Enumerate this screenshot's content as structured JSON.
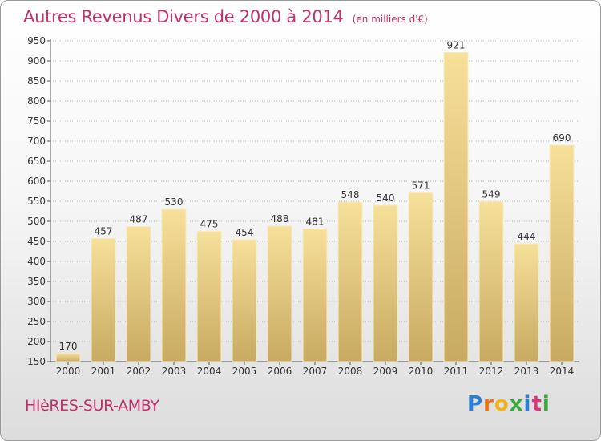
{
  "title": "Autres Revenus Divers de 2000 à 2014",
  "subtitle": "(en milliers d'€)",
  "town": "HIèRES-SUR-AMBY",
  "logo": {
    "text": "Proxiti",
    "letters": [
      "P",
      "r",
      "o",
      "x",
      "i",
      "t",
      "i"
    ]
  },
  "colors": {
    "title": "#c0306a",
    "bar_light": "#f6e09a",
    "bar_dark": "#c8aa62",
    "grid": "#b8b8b8"
  },
  "chart_data": {
    "type": "bar",
    "title": "Autres Revenus Divers de 2000 à 2014",
    "subtitle": "(en milliers d'€)",
    "categories": [
      "2000",
      "2001",
      "2002",
      "2003",
      "2004",
      "2005",
      "2006",
      "2007",
      "2008",
      "2009",
      "2010",
      "2011",
      "2012",
      "2013",
      "2014"
    ],
    "values": [
      170,
      457,
      487,
      530,
      475,
      454,
      488,
      481,
      548,
      540,
      571,
      921,
      549,
      444,
      690
    ],
    "ylim": [
      150,
      950
    ],
    "yticks": [
      150,
      200,
      250,
      300,
      350,
      400,
      450,
      500,
      550,
      600,
      650,
      700,
      750,
      800,
      850,
      900,
      950
    ],
    "grid": true,
    "xlabel": "",
    "ylabel": ""
  }
}
